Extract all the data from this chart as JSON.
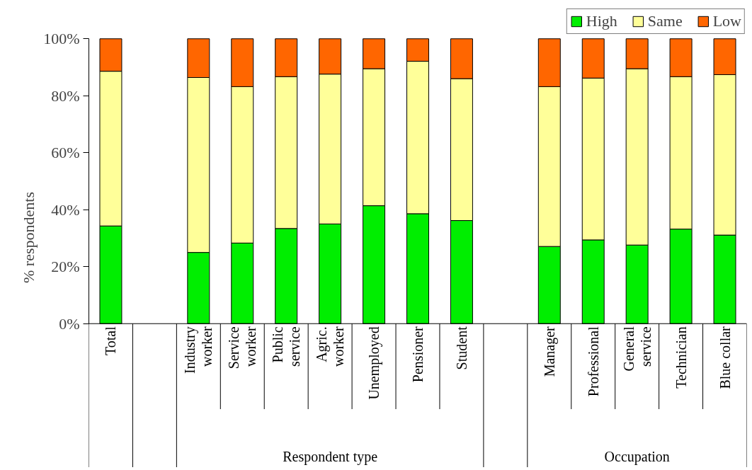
{
  "chart_data": {
    "type": "bar",
    "stacked": true,
    "ylabel": "% respondents",
    "categories": [
      "Total",
      null,
      "Industry\nworker",
      "Service\nworker",
      "Public\nservice",
      "Agric.\nworker",
      "Unemployed",
      "Pensioner",
      "Student",
      null,
      "Manager",
      "Professional",
      "General\nservice",
      "Technician",
      "Blue collar"
    ],
    "series": [
      {
        "name": "High",
        "color": "#00ee00",
        "values": [
          34.3,
          null,
          25.0,
          28.3,
          33.4,
          35.0,
          41.4,
          38.6,
          36.2,
          null,
          27.1,
          29.4,
          27.6,
          33.2,
          31.1
        ]
      },
      {
        "name": "Same",
        "color": "#ffff99",
        "values": [
          54.3,
          null,
          61.4,
          54.9,
          53.3,
          52.6,
          48.1,
          53.5,
          49.8,
          null,
          56.1,
          56.8,
          61.9,
          53.5,
          56.3
        ]
      },
      {
        "name": "Low",
        "color": "#ff6600",
        "values": [
          11.4,
          null,
          13.6,
          16.8,
          13.3,
          12.4,
          10.5,
          7.9,
          14.0,
          null,
          16.8,
          13.8,
          10.5,
          13.3,
          12.6
        ]
      }
    ],
    "ylim": [
      0,
      100
    ],
    "yticks": [
      {
        "value": 0,
        "label": "0%"
      },
      {
        "value": 20,
        "label": "20%"
      },
      {
        "value": 40,
        "label": "40%"
      },
      {
        "value": 60,
        "label": "60%"
      },
      {
        "value": 80,
        "label": "80%"
      },
      {
        "value": 100,
        "label": "100%"
      }
    ],
    "grid": false,
    "legend": "top right",
    "annotations": [
      "Respondent type",
      "Occupation"
    ]
  }
}
